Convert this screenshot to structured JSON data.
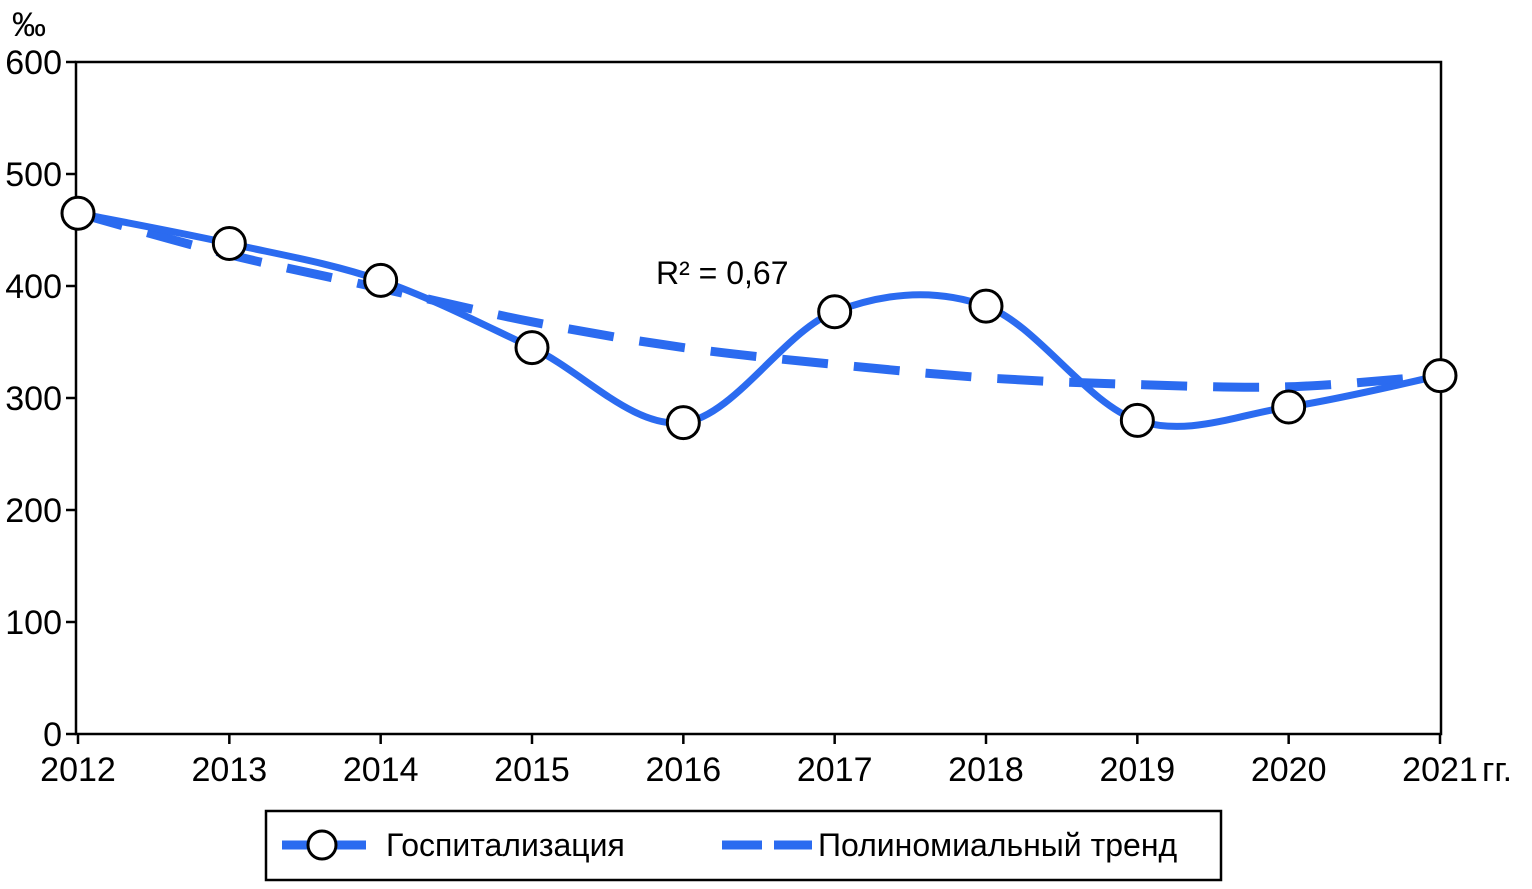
{
  "chart_data": {
    "type": "line",
    "ylabel": "‰",
    "xlabel_suffix": "гг.",
    "categories": [
      "2012",
      "2013",
      "2014",
      "2015",
      "2016",
      "2017",
      "2018",
      "2019",
      "2020",
      "2021"
    ],
    "ylim": [
      0,
      600
    ],
    "yticks": [
      0,
      100,
      200,
      300,
      400,
      500,
      600
    ],
    "series": [
      {
        "name": "Госпитализация",
        "style": "solid-smooth-markers",
        "color": "#2b6bf0",
        "values": [
          465,
          438,
          405,
          345,
          278,
          377,
          382,
          280,
          292,
          320
        ]
      },
      {
        "name": "Полиномиальный тренд",
        "style": "dashed",
        "color": "#2b6bf0",
        "values": [
          465,
          428,
          398,
          368,
          345,
          330,
          318,
          312,
          310,
          320
        ]
      }
    ],
    "annotation": "R² = 0,67",
    "grid": false,
    "legend_position": "bottom"
  }
}
